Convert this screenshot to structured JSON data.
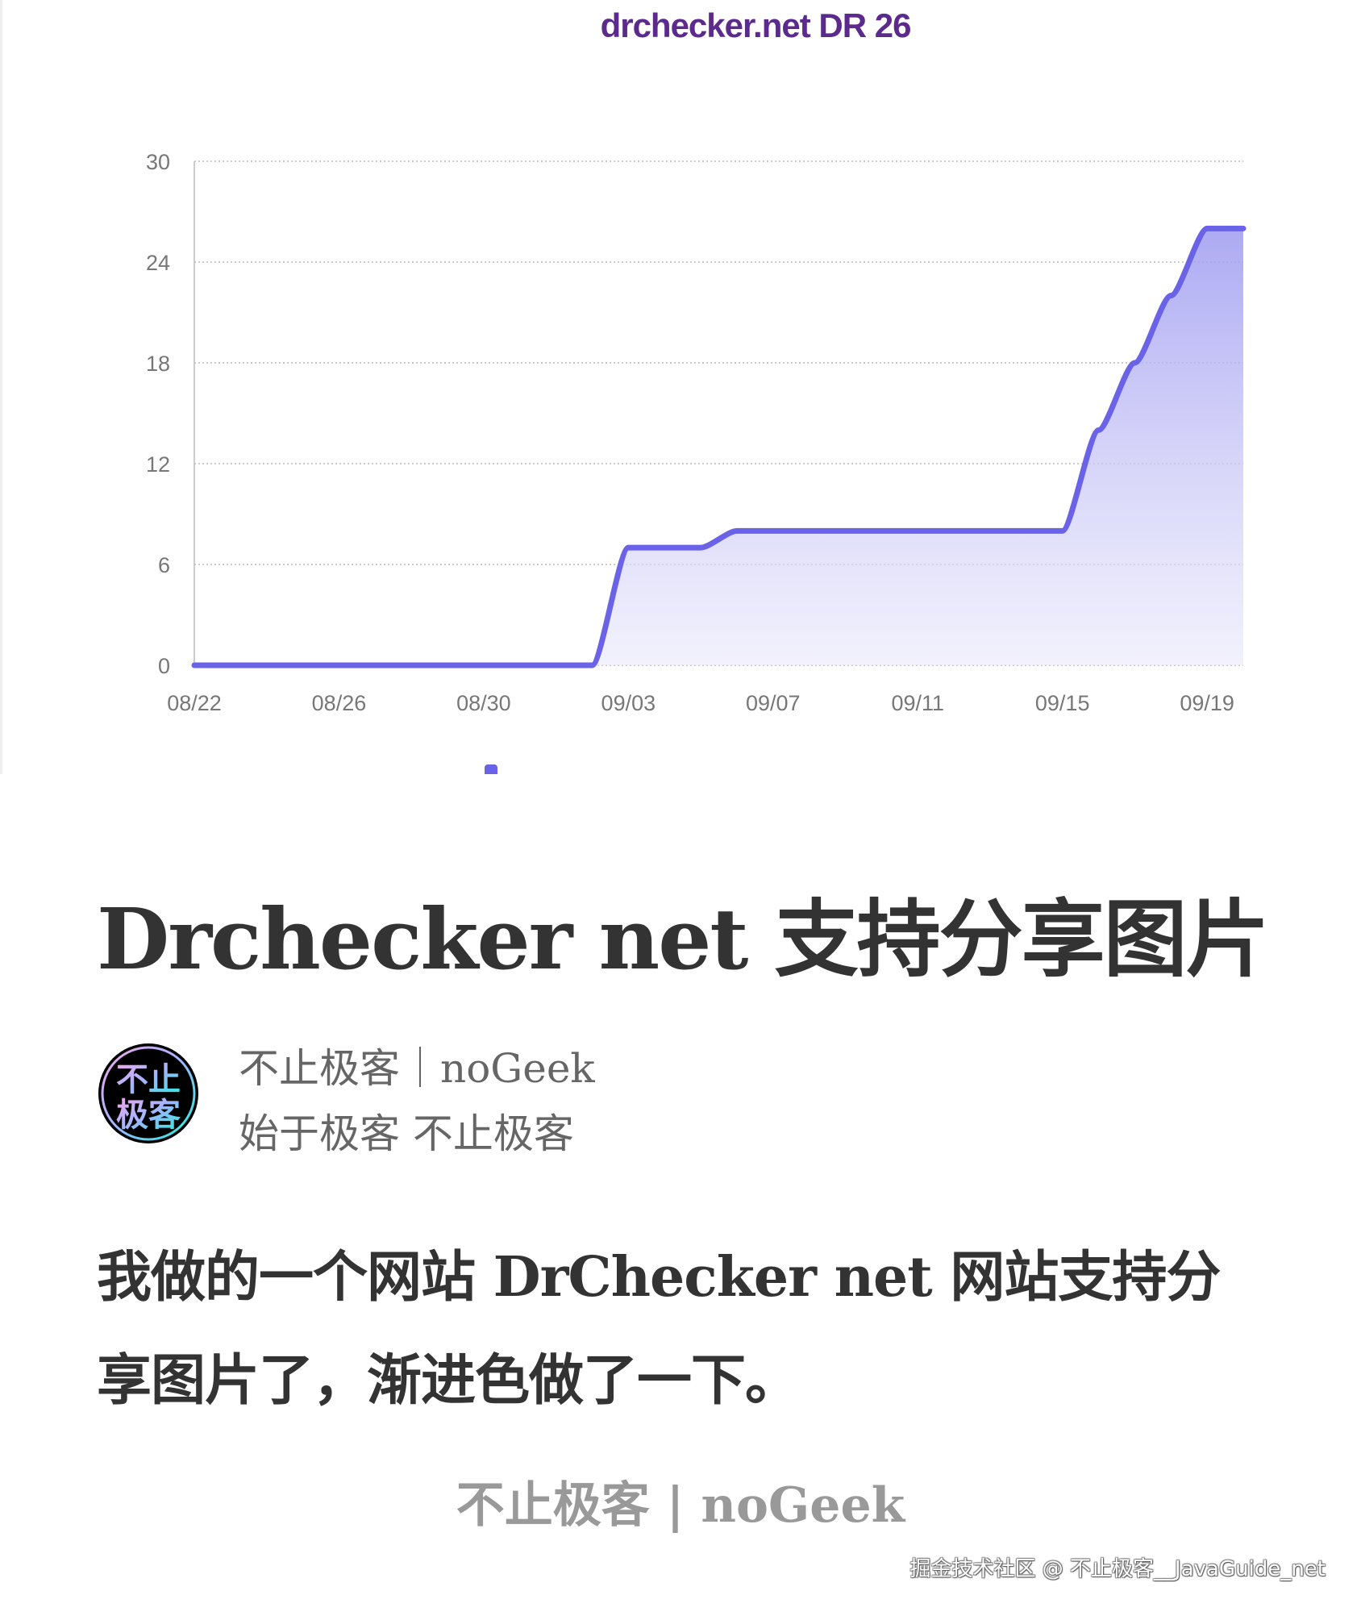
{
  "chart_data": {
    "type": "area",
    "title": "drchecker.net DR 26",
    "xlabel": "",
    "ylabel": "",
    "x": [
      "08/22",
      "08/23",
      "08/24",
      "08/25",
      "08/26",
      "08/27",
      "08/28",
      "08/29",
      "08/30",
      "08/31",
      "09/01",
      "09/02",
      "09/03",
      "09/04",
      "09/05",
      "09/06",
      "09/07",
      "09/08",
      "09/09",
      "09/10",
      "09/11",
      "09/12",
      "09/13",
      "09/14",
      "09/15",
      "09/16",
      "09/17",
      "09/18",
      "09/19",
      "09/20"
    ],
    "values": [
      0,
      0,
      0,
      0,
      0,
      0,
      0,
      0,
      0,
      0,
      0,
      0,
      7,
      7,
      7,
      8,
      8,
      8,
      8,
      8,
      8,
      8,
      8,
      8,
      8,
      14,
      18,
      22,
      26,
      26
    ],
    "x_tick_labels": [
      "08/22",
      "08/26",
      "08/30",
      "09/03",
      "09/07",
      "09/11",
      "09/15",
      "09/19"
    ],
    "y_tick_labels": [
      "0",
      "6",
      "12",
      "18",
      "24",
      "30"
    ],
    "ylim": [
      0,
      30
    ],
    "grid": true,
    "legend": "bottom",
    "line_color": "#6a63e8"
  },
  "article": {
    "title": "Drchecker net 支持分享图片",
    "author_name": "不止极客｜noGeek",
    "author_bio": "始于极客 不止极客",
    "avatar_text": [
      "不止",
      "极客"
    ],
    "paragraph_lines": [
      "我做的一个网站 DrChecker net 网站支持分",
      "享图片了，渐进色做了一下。"
    ],
    "footer_brand": "不止极客 | noGeek"
  },
  "watermark": "掘金技术社区 @ 不止极客__JavaGuide_net"
}
